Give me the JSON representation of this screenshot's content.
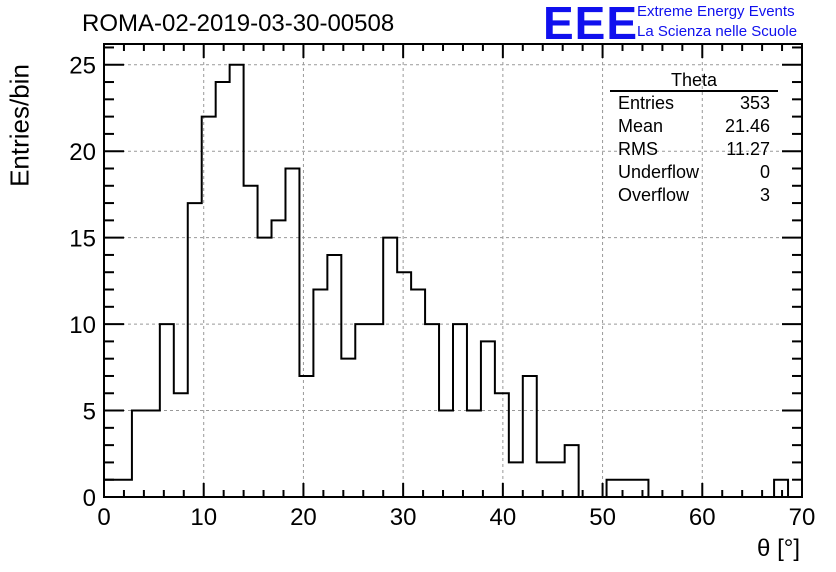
{
  "header": {
    "run_title": "ROMA-02-2019-03-30-00508",
    "logo_text": "EEE",
    "logo_line1": "Extreme Energy Events",
    "logo_line2": "La Scienza nelle Scuole",
    "logo_color": "#1010ee"
  },
  "stats_box": {
    "title": "Theta",
    "rows": [
      {
        "label": "Entries",
        "value": "353"
      },
      {
        "label": "Mean",
        "value": "21.46"
      },
      {
        "label": "RMS",
        "value": "11.27"
      },
      {
        "label": "Underflow",
        "value": "0"
      },
      {
        "label": "Overflow",
        "value": "3"
      }
    ]
  },
  "chart_data": {
    "type": "histogram",
    "xlabel": "θ [°]",
    "ylabel": "Entries/bin",
    "xlim": [
      0,
      70
    ],
    "ylim": [
      0,
      26.2
    ],
    "x_ticks": [
      0,
      10,
      20,
      30,
      40,
      50,
      60,
      70
    ],
    "y_ticks": [
      0,
      5,
      10,
      15,
      20,
      25
    ],
    "grid": true,
    "line_color": "#000000",
    "bin_width": 1.4,
    "bin_edges_start": 0,
    "values": [
      1,
      1,
      5,
      5,
      10,
      6,
      17,
      22,
      24,
      25,
      18,
      15,
      16,
      19,
      7,
      12,
      14,
      8,
      10,
      10,
      15,
      13,
      12,
      10,
      5,
      10,
      5,
      9,
      6,
      2,
      7,
      2,
      2,
      3,
      0,
      0,
      1,
      1,
      1,
      0,
      0,
      0,
      0,
      0,
      0,
      0,
      0,
      0,
      1,
      0
    ]
  }
}
